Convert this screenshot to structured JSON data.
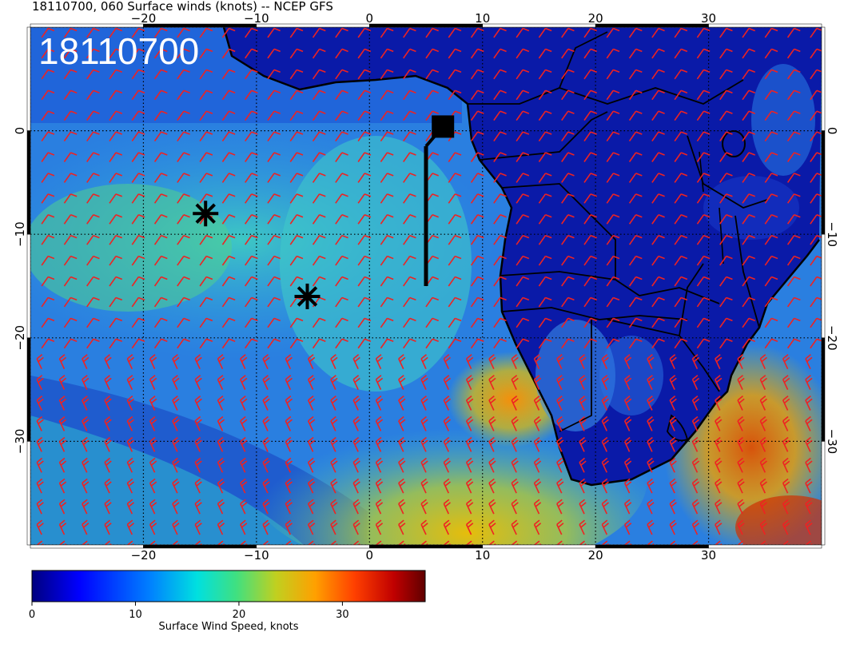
{
  "header": {
    "title": "18110700, 060 Surface winds (knots) -- NCEP GFS",
    "stamp": "18110700"
  },
  "map": {
    "lon_range": [
      -30,
      40
    ],
    "lat_range": [
      -40,
      10
    ],
    "lon_ticks": [
      {
        "value": -20,
        "label": "−20"
      },
      {
        "value": -10,
        "label": "−10"
      },
      {
        "value": 0,
        "label": "0"
      },
      {
        "value": 10,
        "label": "10"
      },
      {
        "value": 20,
        "label": "20"
      },
      {
        "value": 30,
        "label": "30"
      }
    ],
    "lat_ticks": [
      {
        "value": 0,
        "label": "0"
      },
      {
        "value": -10,
        "label": "−10"
      },
      {
        "value": -20,
        "label": "−20"
      },
      {
        "value": -30,
        "label": "−30"
      }
    ],
    "grid_dotted": true,
    "barb_color": "#ee2222",
    "markers": [
      {
        "type": "asterisk",
        "lon": -14.5,
        "lat": -8
      },
      {
        "type": "asterisk",
        "lon": -5.5,
        "lat": -16
      }
    ],
    "flight_track": {
      "end_lon": 5,
      "end_lat": -15,
      "station_lon": 6.5,
      "station_lat": 0.4
    }
  },
  "colorbar": {
    "label": "Surface Wind Speed, knots",
    "range": [
      0,
      38
    ],
    "ticks": [
      {
        "value": 0,
        "label": "0"
      },
      {
        "value": 10,
        "label": "10"
      },
      {
        "value": 20,
        "label": "20"
      },
      {
        "value": 30,
        "label": "30"
      }
    ],
    "colors": [
      "#00007f",
      "#0000ff",
      "#0080ff",
      "#00e0e0",
      "#40e080",
      "#c0d020",
      "#ffa000",
      "#ff4000",
      "#c00000",
      "#600000"
    ]
  }
}
